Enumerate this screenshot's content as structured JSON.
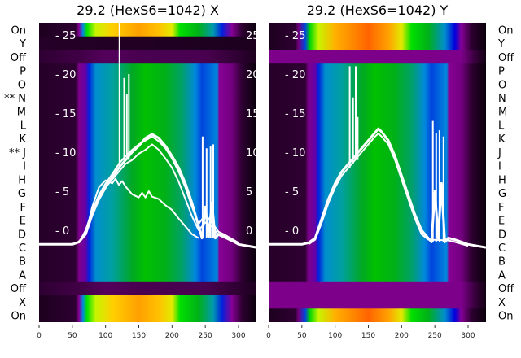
{
  "chart_data": [
    {
      "type": "heatmap",
      "title": "29.2 (HexS6=1042) X",
      "row_labels": [
        "On",
        "Y",
        "Off",
        "P",
        "O",
        "N",
        "M",
        "L",
        "K",
        "J",
        "I",
        "H",
        "G",
        "F",
        "E",
        "D",
        "C",
        "B",
        "A",
        "Off",
        "X",
        "On"
      ],
      "row_markers": {
        "N": "**",
        "J": "**"
      },
      "row_label_side": "left",
      "row_kinds": [
        "bright",
        "dark",
        "off",
        "data",
        "data",
        "data",
        "data",
        "data",
        "data",
        "data",
        "data",
        "data",
        "data",
        "data",
        "data",
        "data",
        "data",
        "data",
        "data",
        "off",
        "bright",
        "bright"
      ],
      "xticks": [
        0,
        50,
        100,
        150,
        200,
        250,
        300
      ],
      "xlim": [
        0,
        327
      ],
      "overlay_yticks": [
        0,
        5,
        10,
        15,
        20,
        25
      ],
      "overlay_ylim": [
        -3.5,
        28.8
      ],
      "colormap": "nipy_spectral",
      "lines": [
        {
          "name": "trace-1",
          "x": [
            0,
            50,
            60,
            70,
            80,
            90,
            100,
            110,
            120,
            130,
            140,
            150,
            160,
            170,
            180,
            190,
            200,
            210,
            220,
            230,
            240,
            245,
            250,
            255,
            260,
            265,
            270,
            280,
            300,
            327
          ],
          "y": [
            -1.8,
            -1.8,
            -1.5,
            -0.5,
            2,
            4,
            5.5,
            6.8,
            8,
            9,
            10,
            10.8,
            11.8,
            12.3,
            11.8,
            10.8,
            9.5,
            8,
            6,
            3.5,
            0.5,
            -1,
            3,
            -0.8,
            3.5,
            -1,
            -0.5,
            -0.8,
            -1.8,
            -2.2
          ]
        },
        {
          "name": "trace-2",
          "x": [
            60,
            70,
            80,
            90,
            100,
            110,
            120,
            130,
            140,
            150,
            160,
            170,
            180,
            190,
            200,
            210,
            220,
            230,
            240,
            250,
            260,
            270,
            280,
            300
          ],
          "y": [
            -1.6,
            0,
            2.5,
            4.5,
            6,
            7.2,
            8.5,
            9.5,
            10.3,
            11,
            11.5,
            12,
            11.4,
            10.5,
            9.2,
            7.5,
            5.5,
            3,
            0.8,
            2,
            1,
            -0.2,
            -0.6,
            -1.6
          ]
        },
        {
          "name": "trace-3",
          "x": [
            70,
            80,
            90,
            100,
            110,
            120,
            130,
            140,
            150,
            160,
            170,
            180,
            190,
            200,
            210,
            220,
            230,
            240,
            250,
            260,
            270,
            280,
            300
          ],
          "y": [
            -0.5,
            2,
            4,
            5.5,
            6.5,
            7.5,
            8.5,
            9,
            9.8,
            10.3,
            11,
            10.3,
            9.2,
            8,
            6.2,
            4,
            1.8,
            0,
            1,
            0.5,
            -0.6,
            -1,
            -1.8
          ]
        },
        {
          "name": "trace-4",
          "x": [
            70,
            80,
            90,
            100,
            110,
            115,
            120,
            125,
            130,
            140,
            150,
            155,
            160,
            165,
            170,
            180,
            190,
            200,
            210,
            220,
            230,
            240
          ],
          "y": [
            -0.5,
            3,
            5.5,
            6.4,
            6,
            6.6,
            5.8,
            6.3,
            5.6,
            4.6,
            4.2,
            4.8,
            4.2,
            5,
            4.3,
            4,
            3.2,
            2.6,
            1.5,
            0.5,
            -0.5,
            -1
          ]
        },
        {
          "name": "spike-1",
          "x": [
            121,
            121
          ],
          "y": [
            8,
            29
          ]
        },
        {
          "name": "spike-2",
          "x": [
            128,
            128
          ],
          "y": [
            8.5,
            19.5
          ]
        },
        {
          "name": "spike-3",
          "x": [
            132,
            132
          ],
          "y": [
            9,
            17.5
          ]
        },
        {
          "name": "spike-4",
          "x": [
            135,
            135
          ],
          "y": [
            9,
            20
          ]
        },
        {
          "name": "spike-5",
          "x": [
            246,
            246
          ],
          "y": [
            -1,
            12
          ]
        },
        {
          "name": "spike-6",
          "x": [
            252,
            252
          ],
          "y": [
            -1,
            10.5
          ]
        },
        {
          "name": "spike-7",
          "x": [
            258,
            258
          ],
          "y": [
            -1,
            10.8
          ]
        },
        {
          "name": "spike-8",
          "x": [
            262,
            262
          ],
          "y": [
            -1,
            11
          ]
        }
      ]
    },
    {
      "type": "heatmap",
      "title": "29.2 (HexS6=1042) Y",
      "row_labels": [
        "On",
        "Y",
        "Off",
        "P",
        "O",
        "N",
        "M",
        "L",
        "K",
        "J",
        "I",
        "H",
        "G",
        "F",
        "E",
        "D",
        "C",
        "B",
        "A",
        "Off",
        "X",
        "On"
      ],
      "row_markers": {},
      "row_label_side": "right",
      "row_kinds": [
        "brightR",
        "brightR",
        "offR",
        "data",
        "data",
        "data",
        "data",
        "data",
        "data",
        "data",
        "data",
        "data",
        "data",
        "data",
        "data",
        "data",
        "data",
        "data",
        "data",
        "offR",
        "offR",
        "brightR"
      ],
      "xticks": [
        0,
        50,
        100,
        150,
        200,
        250,
        300
      ],
      "xlim": [
        0,
        327
      ],
      "overlay_yticks": [
        0,
        5,
        10,
        15,
        20,
        25
      ],
      "overlay_ylim": [
        -3.5,
        28.8
      ],
      "colormap": "nipy_spectral",
      "lines": [
        {
          "name": "trace-1",
          "x": [
            0,
            50,
            60,
            70,
            80,
            90,
            100,
            110,
            120,
            130,
            140,
            150,
            160,
            165,
            170,
            180,
            190,
            200,
            210,
            220,
            230,
            240,
            245,
            250,
            255,
            260,
            265,
            270,
            280,
            300,
            327
          ],
          "y": [
            -1.8,
            -1.8,
            -1.6,
            -1,
            1.5,
            4,
            6,
            7.5,
            8.5,
            9.5,
            10.5,
            11.5,
            12.5,
            13,
            12.6,
            11.5,
            9.5,
            7,
            4.5,
            2,
            0,
            -1,
            -1.5,
            5,
            -1,
            6,
            -1.5,
            -1,
            -1.2,
            -1.8,
            -2.2
          ]
        },
        {
          "name": "trace-2",
          "x": [
            60,
            70,
            80,
            90,
            100,
            110,
            120,
            130,
            140,
            150,
            160,
            165,
            170,
            180,
            190,
            200,
            210,
            220,
            230,
            240,
            270,
            280,
            300
          ],
          "y": [
            -1.8,
            -1.2,
            1,
            3.5,
            5.5,
            7,
            8,
            9,
            10,
            11,
            12,
            12.4,
            12,
            11,
            9,
            6.5,
            4,
            1.5,
            -0.5,
            -1.2,
            -1.3,
            -1.5,
            -2
          ]
        },
        {
          "name": "spike-1",
          "x": [
            122,
            122
          ],
          "y": [
            8,
            21
          ]
        },
        {
          "name": "spike-2",
          "x": [
            127,
            127
          ],
          "y": [
            8.5,
            17
          ]
        },
        {
          "name": "spike-3",
          "x": [
            131,
            131
          ],
          "y": [
            9,
            21
          ]
        },
        {
          "name": "spike-4",
          "x": [
            134,
            134
          ],
          "y": [
            9,
            14.5
          ]
        },
        {
          "name": "spike-5",
          "x": [
            247,
            247
          ],
          "y": [
            -1.5,
            14
          ]
        },
        {
          "name": "spike-6",
          "x": [
            252,
            252
          ],
          "y": [
            -1.5,
            12.5
          ]
        },
        {
          "name": "spike-7",
          "x": [
            257,
            257
          ],
          "y": [
            -1.5,
            12.8
          ]
        },
        {
          "name": "spike-8",
          "x": [
            263,
            263
          ],
          "y": [
            -1.5,
            12
          ]
        }
      ]
    }
  ],
  "colors": {
    "line": "#ffffff",
    "background": "#ffffff"
  }
}
